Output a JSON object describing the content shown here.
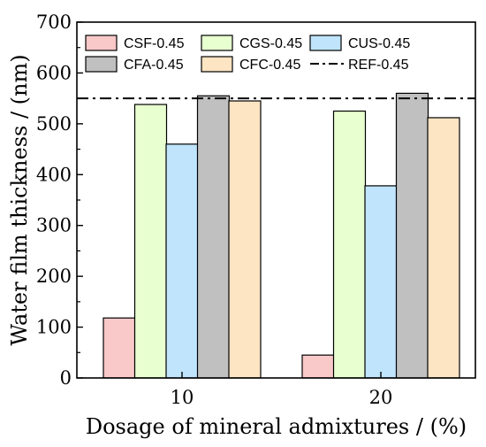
{
  "chart_data": {
    "type": "bar",
    "title": "",
    "xlabel": "Dosage of mineral admixtures / (%)",
    "ylabel": "Water film thickness / (nm)",
    "ylim": [
      0,
      700
    ],
    "yticks": [
      0,
      100,
      200,
      300,
      400,
      500,
      600,
      700
    ],
    "categories": [
      "10",
      "20"
    ],
    "series": [
      {
        "name": "CSF-0.45",
        "color": "#f9c8c8",
        "values": [
          118,
          45
        ]
      },
      {
        "name": "CGS-0.45",
        "color": "#e8ffd0",
        "values": [
          538,
          525
        ]
      },
      {
        "name": "CUS-0.45",
        "color": "#bfe4fb",
        "values": [
          460,
          378
        ]
      },
      {
        "name": "CFA-0.45",
        "color": "#c0c0c0",
        "values": [
          555,
          560
        ]
      },
      {
        "name": "CFC-0.45",
        "color": "#fde4c3",
        "values": [
          545,
          512
        ]
      }
    ],
    "reference_lines": [
      {
        "name": "REF-0.45",
        "value": 550,
        "style": "dash-dot",
        "color": "#000000"
      }
    ],
    "legend": {
      "placement": "top-left",
      "columns": 3
    },
    "grid": false
  }
}
